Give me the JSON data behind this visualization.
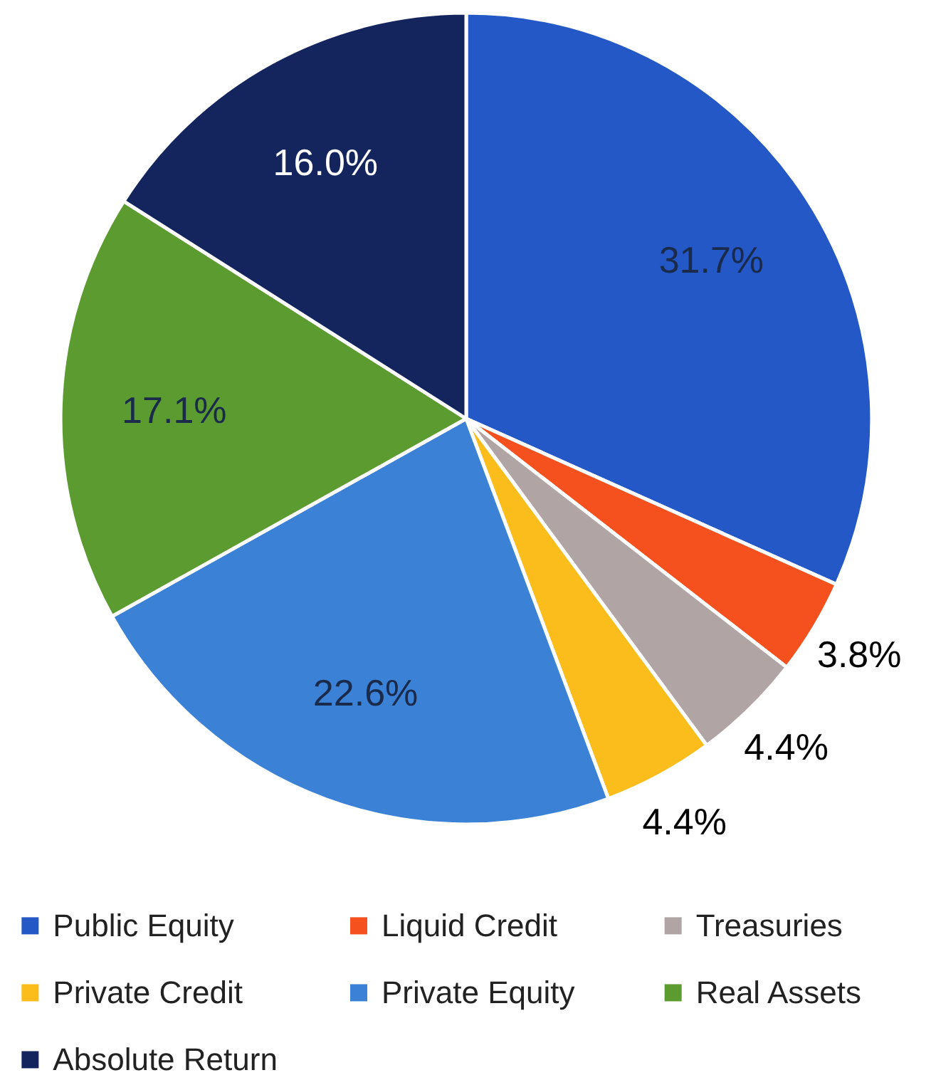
{
  "chart_data": {
    "type": "pie",
    "categories": [
      "Public Equity",
      "Liquid Credit",
      "Treasuries",
      "Private Credit",
      "Private Equity",
      "Real Assets",
      "Absolute Return"
    ],
    "values": [
      31.7,
      3.8,
      4.4,
      4.4,
      22.6,
      17.1,
      16.0
    ],
    "colors": [
      "#2458c6",
      "#f4511e",
      "#b0a4a4",
      "#fbbd1c",
      "#3b82d6",
      "#5b9b2f",
      "#14255e"
    ],
    "value_labels": [
      "31.7%",
      "3.8%",
      "4.4%",
      "4.4%",
      "22.6%",
      "17.1%",
      "16.0%"
    ],
    "legend": "bottom"
  }
}
